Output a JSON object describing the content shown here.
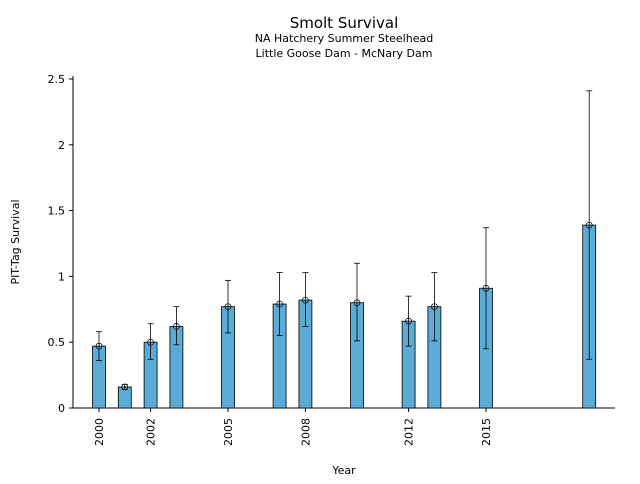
{
  "chart_data": {
    "type": "bar",
    "title": "Smolt Survival",
    "subtitle": [
      "NA Hatchery Summer Steelhead",
      "Little Goose Dam - McNary Dam"
    ],
    "xlabel": "Year",
    "ylabel": "PIT-Tag Survival",
    "ylim": [
      0,
      2.5
    ],
    "xlim": [
      1999,
      2021
    ],
    "yticks": [
      0,
      0.5,
      1,
      1.5,
      2,
      2.5
    ],
    "ytick_labels": [
      "0",
      "0.5",
      "1",
      "1.5",
      "2",
      "2.5"
    ],
    "xticks": [
      2000,
      2002,
      2005,
      2008,
      2012,
      2015
    ],
    "xtick_labels": [
      "2000",
      "2002",
      "2005",
      "2008",
      "2012",
      "2015"
    ],
    "grid": false,
    "bar_color": "#5aacd6",
    "x": [
      2000,
      2001,
      2002,
      2003,
      2005,
      2007,
      2008,
      2010,
      2012,
      2013,
      2015,
      2019
    ],
    "values": [
      0.47,
      0.16,
      0.5,
      0.62,
      0.77,
      0.79,
      0.82,
      0.8,
      0.66,
      0.77,
      0.91,
      1.39
    ],
    "error_low": [
      0.36,
      0.14,
      0.37,
      0.48,
      0.57,
      0.55,
      0.62,
      0.51,
      0.47,
      0.51,
      0.45,
      0.37
    ],
    "error_high": [
      0.58,
      0.18,
      0.64,
      0.77,
      0.97,
      1.03,
      1.03,
      1.1,
      0.85,
      1.03,
      1.37,
      2.41
    ]
  }
}
